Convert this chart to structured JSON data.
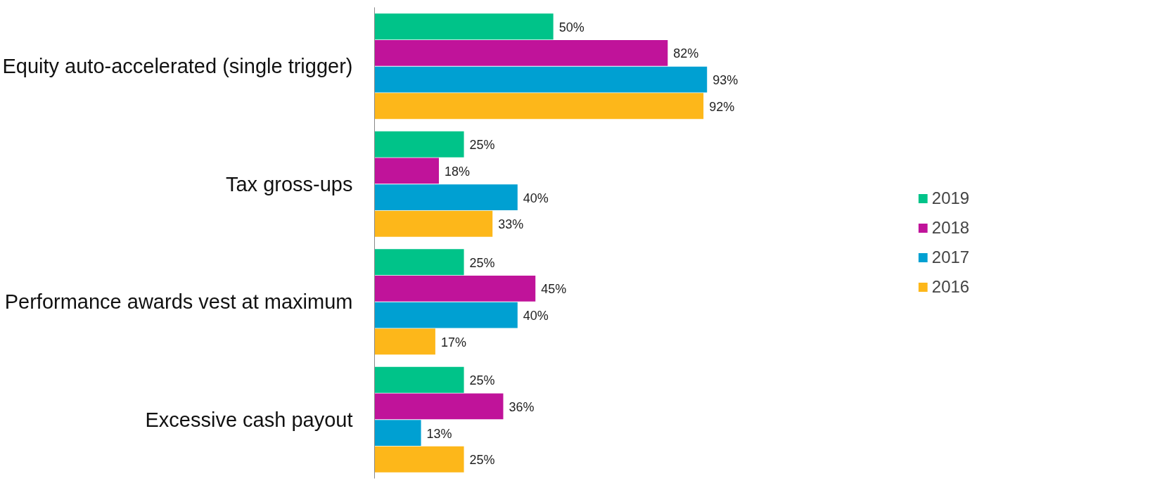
{
  "chart_data": {
    "type": "bar",
    "orientation": "horizontal",
    "categories": [
      "Equity auto-accelerated (single trigger)",
      "Tax gross-ups",
      "Performance awards vest at maximum",
      "Excessive cash payout"
    ],
    "series": [
      {
        "name": "2019",
        "color": "#00c389",
        "values": [
          50,
          25,
          25,
          25
        ],
        "value_labels": [
          "50%",
          "25%",
          "25%",
          "25%"
        ]
      },
      {
        "name": "2018",
        "color": "#c0139a",
        "values": [
          82,
          18,
          45,
          36
        ],
        "value_labels": [
          "82%",
          "18%",
          "45%",
          "36%"
        ]
      },
      {
        "name": "2017",
        "color": "#00a0d2",
        "values": [
          93,
          40,
          40,
          13
        ],
        "value_labels": [
          "93%",
          "40%",
          "40%",
          "13%"
        ]
      },
      {
        "name": "2016",
        "color": "#fdb71a",
        "values": [
          92,
          33,
          17,
          25
        ],
        "value_labels": [
          "92%",
          "33%",
          "17%",
          "25%"
        ]
      }
    ],
    "legend": "right",
    "grid": false
  }
}
